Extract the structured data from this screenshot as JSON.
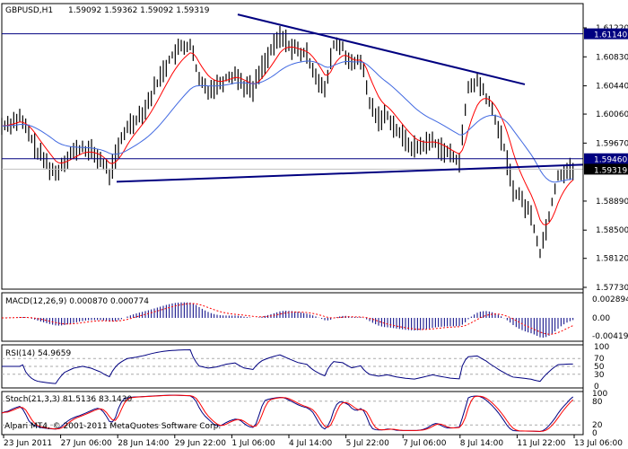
{
  "header": {
    "symbol": "GBPUSD,H1",
    "ohlc": "1.59092 1.59362 1.59092 1.59319"
  },
  "copyright": "Alpari MT4, © 2001-2011 MetaQuotes Software Corp.",
  "colors": {
    "bars": "#000000",
    "fast_ma": "#ff0000",
    "slow_ma": "#4169e1",
    "lines": "#000080",
    "price_tag": "#000080"
  },
  "chart_data": {
    "type": "ohlc-bar",
    "price_axis": {
      "ticks": [
        "1.61220",
        "1.60830",
        "1.60440",
        "1.60060",
        "1.59670",
        "1.58890",
        "1.58500",
        "1.58120",
        "1.57730"
      ],
      "ylim": [
        1.5773,
        1.6122
      ]
    },
    "price_tags": [
      {
        "label": "1.61140",
        "value": 1.6114,
        "kind": "hline"
      },
      {
        "label": "1.59460",
        "value": 1.5946,
        "kind": "hline"
      },
      {
        "label": "1.59319",
        "value": 1.59319,
        "kind": "current"
      }
    ],
    "time_labels": [
      "23 Jun 2011",
      "27 Jun 06:00",
      "28 Jun 14:00",
      "29 Jun 22:00",
      "1 Jul 06:00",
      "4 Jul 14:00",
      "5 Jul 22:00",
      "7 Jul 06:00",
      "8 Jul 14:00",
      "11 Jul 22:00",
      "13 Jul 06:00"
    ],
    "closes": [
      1.599,
      1.5995,
      1.6,
      1.598,
      1.5955,
      1.594,
      1.5925,
      1.5945,
      1.5955,
      1.596,
      1.5955,
      1.5945,
      1.5925,
      1.596,
      1.599,
      1.6,
      1.6015,
      1.604,
      1.6065,
      1.6085,
      1.6095,
      1.61,
      1.605,
      1.604,
      1.6045,
      1.6055,
      1.606,
      1.6045,
      1.604,
      1.607,
      1.609,
      1.611,
      1.61,
      1.609,
      1.6085,
      1.606,
      1.6035,
      1.61,
      1.6095,
      1.607,
      1.608,
      1.602,
      1.6,
      1.6005,
      1.5985,
      1.597,
      1.596,
      1.5965,
      1.597,
      1.596,
      1.595,
      1.5945,
      1.604,
      1.605,
      1.603,
      1.6,
      1.596,
      1.5905,
      1.589,
      1.587,
      1.582,
      1.587,
      1.5925,
      1.593,
      1.5932
    ],
    "trendlines": [
      {
        "from": [
          26.3,
          1.614
        ],
        "to": [
          58.3,
          1.6046
        ]
      },
      {
        "from": [
          12.8,
          1.5915
        ],
        "to": [
          64.8,
          1.5938
        ]
      }
    ],
    "indicators": {
      "macd": {
        "label": "MACD(12,26,9) 0.000870 0.000774",
        "ticks": [
          "0.002894",
          "0.00",
          "-0.00419"
        ]
      },
      "rsi": {
        "label": "RSI(14) 54.9659",
        "ticks": [
          "100",
          "70",
          "50",
          "30",
          "0"
        ]
      },
      "stoch": {
        "label": "Stoch(21,3,3) 81.5136 83.1430",
        "ticks": [
          "100",
          "80",
          "20",
          "0"
        ]
      }
    }
  }
}
